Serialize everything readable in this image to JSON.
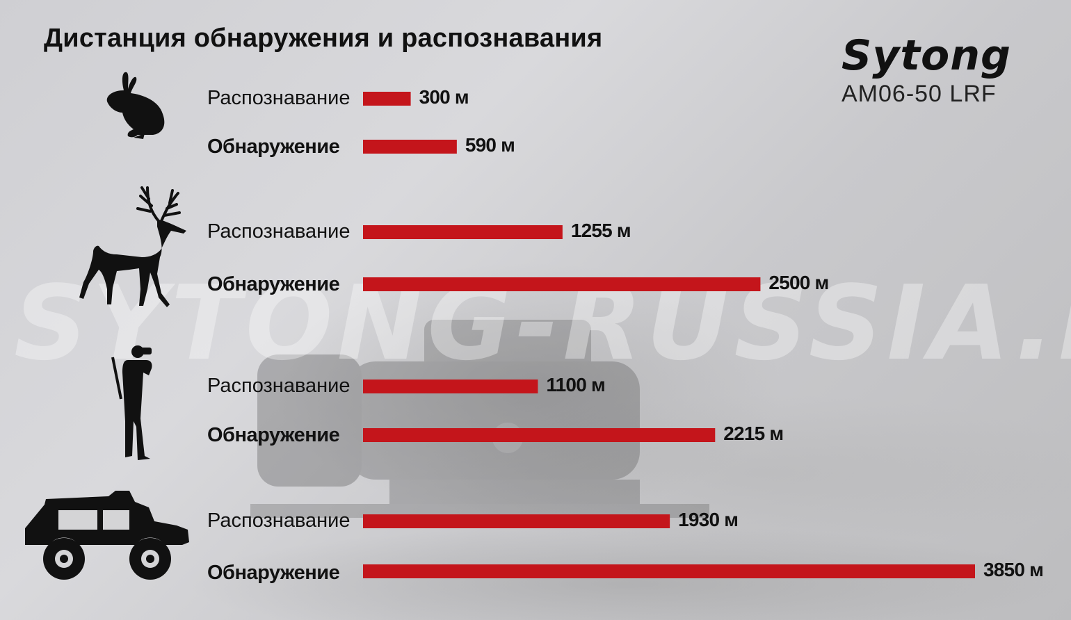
{
  "title": "Дистанция обнаружения и распознавания",
  "brand": {
    "logo_text": "Sytong",
    "model": "AM06-50 LRF"
  },
  "watermark": "SYTONG-RUSSIA.RU",
  "colors": {
    "bar": "#c4151b",
    "text": "#111111"
  },
  "chart_data": {
    "type": "bar",
    "orientation": "horizontal",
    "unit": "м",
    "groups": [
      {
        "target": "rabbit-icon",
        "bars": [
          {
            "label": "Распознавание",
            "value": 300,
            "value_label": "300 м"
          },
          {
            "label": "Обнаружение",
            "value": 590,
            "value_label": "590 м"
          }
        ]
      },
      {
        "target": "deer-icon",
        "bars": [
          {
            "label": "Распознавание",
            "value": 1255,
            "value_label": "1255 м"
          },
          {
            "label": "Обнаружение",
            "value": 2500,
            "value_label": "2500 м"
          }
        ]
      },
      {
        "target": "human-icon",
        "bars": [
          {
            "label": "Распознавание",
            "value": 1100,
            "value_label": "1100 м"
          },
          {
            "label": "Обнаружение",
            "value": 2215,
            "value_label": "2215 м"
          }
        ]
      },
      {
        "target": "vehicle-icon",
        "bars": [
          {
            "label": "Распознавание",
            "value": 1930,
            "value_label": "1930 м"
          },
          {
            "label": "Обнаружение",
            "value": 3850,
            "value_label": "3850 м"
          }
        ]
      }
    ]
  }
}
